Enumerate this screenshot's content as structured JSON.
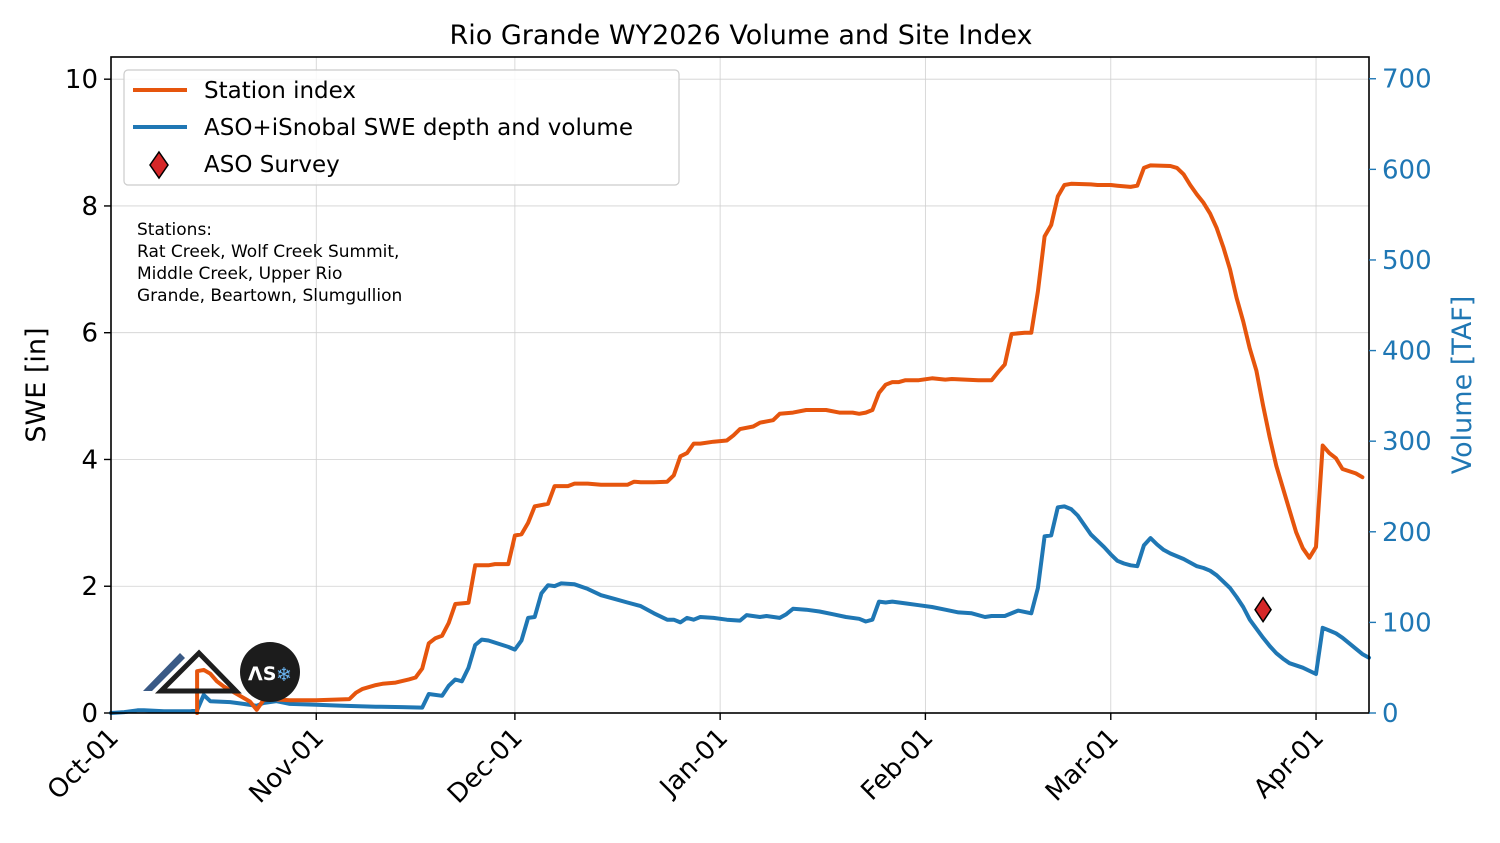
{
  "chart_data": {
    "type": "line",
    "title": "Rio Grande WY2026 Volume and Site Index",
    "ylabel": "SWE [in]",
    "y2label": "Volume [TAF]",
    "ylim": [
      0,
      10.35
    ],
    "y2lim": [
      0,
      724
    ],
    "yticks": [
      "0",
      "2",
      "4",
      "6",
      "8",
      "10"
    ],
    "y2ticks": [
      "0",
      "100",
      "200",
      "300",
      "400",
      "500",
      "600",
      "700"
    ],
    "xticks": [
      {
        "date": "2025-10-01",
        "label": "Oct-01"
      },
      {
        "date": "2025-11-01",
        "label": "Nov-01"
      },
      {
        "date": "2025-12-01",
        "label": "Dec-01"
      },
      {
        "date": "2026-01-01",
        "label": "Jan-01"
      },
      {
        "date": "2026-02-01",
        "label": "Feb-01"
      },
      {
        "date": "2026-03-01",
        "label": "Mar-01"
      },
      {
        "date": "2026-04-01",
        "label": "Apr-01"
      }
    ],
    "xlim": [
      "2025-10-01",
      "2026-04-09"
    ],
    "grid": true,
    "legend_position": "top-left",
    "legend": [
      "Station index",
      "ASO+iSnobal SWE depth and volume",
      "ASO Survey"
    ],
    "annotation": [
      "Stations:",
      "Rat Creek, Wolf Creek Summit,",
      "Middle Creek, Upper Rio",
      "Grande, Beartown, Slumgullion"
    ],
    "colors": {
      "station": "#e6550d",
      "volume": "#1f77b4",
      "survey": "#d62728"
    },
    "series": [
      {
        "name": "Station index",
        "axis": "left",
        "points": [
          [
            "2025-10-14",
            0.0
          ],
          [
            "2025-10-14",
            0.66
          ],
          [
            "2025-10-15",
            0.68
          ],
          [
            "2025-10-16",
            0.62
          ],
          [
            "2025-10-17",
            0.5
          ],
          [
            "2025-10-18",
            0.42
          ],
          [
            "2025-10-20",
            0.3
          ],
          [
            "2025-10-22",
            0.18
          ],
          [
            "2025-10-23",
            0.05
          ],
          [
            "2025-10-24",
            0.2
          ],
          [
            "2025-10-25",
            0.22
          ],
          [
            "2025-10-28",
            0.2
          ],
          [
            "2025-11-01",
            0.2
          ],
          [
            "2025-11-06",
            0.22
          ],
          [
            "2025-11-07",
            0.32
          ],
          [
            "2025-11-08",
            0.38
          ],
          [
            "2025-11-10",
            0.44
          ],
          [
            "2025-11-11",
            0.46
          ],
          [
            "2025-11-13",
            0.48
          ],
          [
            "2025-11-15",
            0.53
          ],
          [
            "2025-11-16",
            0.56
          ],
          [
            "2025-11-17",
            0.7
          ],
          [
            "2025-11-18",
            1.1
          ],
          [
            "2025-11-19",
            1.18
          ],
          [
            "2025-11-20",
            1.22
          ],
          [
            "2025-11-21",
            1.42
          ],
          [
            "2025-11-22",
            1.72
          ],
          [
            "2025-11-24",
            1.74
          ],
          [
            "2025-11-25",
            2.33
          ],
          [
            "2025-11-27",
            2.33
          ],
          [
            "2025-11-28",
            2.35
          ],
          [
            "2025-11-30",
            2.35
          ],
          [
            "2025-12-01",
            2.8
          ],
          [
            "2025-12-02",
            2.82
          ],
          [
            "2025-12-03",
            3.0
          ],
          [
            "2025-12-04",
            3.26
          ],
          [
            "2025-12-06",
            3.3
          ],
          [
            "2025-12-07",
            3.58
          ],
          [
            "2025-12-09",
            3.58
          ],
          [
            "2025-12-10",
            3.62
          ],
          [
            "2025-12-12",
            3.62
          ],
          [
            "2025-12-14",
            3.6
          ],
          [
            "2025-12-16",
            3.6
          ],
          [
            "2025-12-18",
            3.6
          ],
          [
            "2025-12-19",
            3.65
          ],
          [
            "2025-12-20",
            3.64
          ],
          [
            "2025-12-22",
            3.64
          ],
          [
            "2025-12-24",
            3.65
          ],
          [
            "2025-12-25",
            3.75
          ],
          [
            "2025-12-26",
            4.05
          ],
          [
            "2025-12-27",
            4.1
          ],
          [
            "2025-12-28",
            4.25
          ],
          [
            "2025-12-29",
            4.25
          ],
          [
            "2025-12-31",
            4.28
          ],
          [
            "2026-01-02",
            4.3
          ],
          [
            "2026-01-03",
            4.38
          ],
          [
            "2026-01-04",
            4.48
          ],
          [
            "2026-01-06",
            4.52
          ],
          [
            "2026-01-07",
            4.58
          ],
          [
            "2026-01-08",
            4.6
          ],
          [
            "2026-01-09",
            4.62
          ],
          [
            "2026-01-10",
            4.72
          ],
          [
            "2026-01-12",
            4.74
          ],
          [
            "2026-01-14",
            4.78
          ],
          [
            "2026-01-17",
            4.78
          ],
          [
            "2026-01-19",
            4.74
          ],
          [
            "2026-01-21",
            4.74
          ],
          [
            "2026-01-22",
            4.72
          ],
          [
            "2026-01-23",
            4.74
          ],
          [
            "2026-01-24",
            4.78
          ],
          [
            "2026-01-25",
            5.05
          ],
          [
            "2026-01-26",
            5.18
          ],
          [
            "2026-01-27",
            5.22
          ],
          [
            "2026-01-28",
            5.22
          ],
          [
            "2026-01-29",
            5.25
          ],
          [
            "2026-01-31",
            5.25
          ],
          [
            "2026-02-02",
            5.28
          ],
          [
            "2026-02-04",
            5.26
          ],
          [
            "2026-02-05",
            5.27
          ],
          [
            "2026-02-07",
            5.26
          ],
          [
            "2026-02-09",
            5.25
          ],
          [
            "2026-02-11",
            5.25
          ],
          [
            "2026-02-12",
            5.38
          ],
          [
            "2026-02-13",
            5.5
          ],
          [
            "2026-02-14",
            5.98
          ],
          [
            "2026-02-16",
            6.0
          ],
          [
            "2026-02-17",
            6.0
          ],
          [
            "2026-02-18",
            6.65
          ],
          [
            "2026-02-19",
            7.52
          ],
          [
            "2026-02-20",
            7.7
          ],
          [
            "2026-02-21",
            8.15
          ],
          [
            "2026-02-22",
            8.33
          ],
          [
            "2026-02-23",
            8.35
          ],
          [
            "2026-02-26",
            8.34
          ],
          [
            "2026-02-27",
            8.33
          ],
          [
            "2026-03-01",
            8.33
          ],
          [
            "2026-03-02",
            8.32
          ],
          [
            "2026-03-04",
            8.3
          ],
          [
            "2026-03-05",
            8.32
          ],
          [
            "2026-03-06",
            8.6
          ],
          [
            "2026-03-07",
            8.64
          ],
          [
            "2026-03-10",
            8.63
          ],
          [
            "2026-03-11",
            8.6
          ],
          [
            "2026-03-12",
            8.5
          ],
          [
            "2026-03-13",
            8.33
          ],
          [
            "2026-03-14",
            8.18
          ],
          [
            "2026-03-15",
            8.05
          ],
          [
            "2026-03-16",
            7.88
          ],
          [
            "2026-03-17",
            7.65
          ],
          [
            "2026-03-18",
            7.35
          ],
          [
            "2026-03-19",
            7.0
          ],
          [
            "2026-03-20",
            6.55
          ],
          [
            "2026-03-21",
            6.18
          ],
          [
            "2026-03-22",
            5.75
          ],
          [
            "2026-03-23",
            5.4
          ],
          [
            "2026-03-24",
            4.85
          ],
          [
            "2026-03-25",
            4.35
          ],
          [
            "2026-03-26",
            3.9
          ],
          [
            "2026-03-27",
            3.55
          ],
          [
            "2026-03-28",
            3.2
          ],
          [
            "2026-03-29",
            2.85
          ],
          [
            "2026-03-30",
            2.6
          ],
          [
            "2026-03-31",
            2.45
          ],
          [
            "2026-04-01",
            2.62
          ],
          [
            "2026-04-02",
            4.22
          ],
          [
            "2026-04-03",
            4.1
          ],
          [
            "2026-04-04",
            4.02
          ],
          [
            "2026-04-05",
            3.85
          ],
          [
            "2026-04-07",
            3.78
          ],
          [
            "2026-04-08",
            3.72
          ]
        ]
      },
      {
        "name": "ASO+iSnobal SWE depth and volume",
        "axis": "right",
        "points": [
          [
            "2025-10-01",
            0
          ],
          [
            "2025-10-03",
            1
          ],
          [
            "2025-10-04",
            2
          ],
          [
            "2025-10-05",
            3
          ],
          [
            "2025-10-06",
            3
          ],
          [
            "2025-10-09",
            2
          ],
          [
            "2025-10-11",
            2
          ],
          [
            "2025-10-13",
            2
          ],
          [
            "2025-10-14",
            3
          ],
          [
            "2025-10-15",
            20
          ],
          [
            "2025-10-16",
            13
          ],
          [
            "2025-10-19",
            12
          ],
          [
            "2025-10-21",
            10
          ],
          [
            "2025-10-23",
            8
          ],
          [
            "2025-10-24",
            11
          ],
          [
            "2025-10-26",
            13
          ],
          [
            "2025-10-28",
            10
          ],
          [
            "2025-11-01",
            9
          ],
          [
            "2025-11-05",
            8
          ],
          [
            "2025-11-10",
            7
          ],
          [
            "2025-11-14",
            6.5
          ],
          [
            "2025-11-17",
            6
          ],
          [
            "2025-11-18",
            21
          ],
          [
            "2025-11-20",
            19
          ],
          [
            "2025-11-21",
            30
          ],
          [
            "2025-11-22",
            37
          ],
          [
            "2025-11-23",
            35
          ],
          [
            "2025-11-24",
            50
          ],
          [
            "2025-11-25",
            75
          ],
          [
            "2025-11-26",
            81
          ],
          [
            "2025-11-27",
            80
          ],
          [
            "2025-11-30",
            73
          ],
          [
            "2025-12-01",
            70
          ],
          [
            "2025-12-02",
            80
          ],
          [
            "2025-12-03",
            105
          ],
          [
            "2025-12-04",
            106
          ],
          [
            "2025-12-05",
            132
          ],
          [
            "2025-12-06",
            141
          ],
          [
            "2025-12-07",
            140
          ],
          [
            "2025-12-08",
            143
          ],
          [
            "2025-12-10",
            142
          ],
          [
            "2025-12-12",
            137
          ],
          [
            "2025-12-14",
            130
          ],
          [
            "2025-12-16",
            126
          ],
          [
            "2025-12-18",
            122
          ],
          [
            "2025-12-20",
            118
          ],
          [
            "2025-12-22",
            110
          ],
          [
            "2025-12-24",
            103
          ],
          [
            "2025-12-25",
            103
          ],
          [
            "2025-12-26",
            100
          ],
          [
            "2025-12-27",
            105
          ],
          [
            "2025-12-28",
            103
          ],
          [
            "2025-12-29",
            106
          ],
          [
            "2025-12-31",
            105
          ],
          [
            "2026-01-02",
            103
          ],
          [
            "2026-01-04",
            102
          ],
          [
            "2026-01-05",
            108
          ],
          [
            "2026-01-07",
            106
          ],
          [
            "2026-01-08",
            107
          ],
          [
            "2026-01-10",
            105
          ],
          [
            "2026-01-11",
            109
          ],
          [
            "2026-01-12",
            115
          ],
          [
            "2026-01-14",
            114
          ],
          [
            "2026-01-16",
            112
          ],
          [
            "2026-01-18",
            109
          ],
          [
            "2026-01-20",
            106
          ],
          [
            "2026-01-22",
            104
          ],
          [
            "2026-01-23",
            101
          ],
          [
            "2026-01-24",
            103
          ],
          [
            "2026-01-25",
            123
          ],
          [
            "2026-01-26",
            122
          ],
          [
            "2026-01-27",
            123
          ],
          [
            "2026-01-29",
            121
          ],
          [
            "2026-01-31",
            119
          ],
          [
            "2026-02-02",
            117
          ],
          [
            "2026-02-04",
            114
          ],
          [
            "2026-02-06",
            111
          ],
          [
            "2026-02-08",
            110
          ],
          [
            "2026-02-10",
            106
          ],
          [
            "2026-02-11",
            107
          ],
          [
            "2026-02-13",
            107
          ],
          [
            "2026-02-15",
            113
          ],
          [
            "2026-02-17",
            110
          ],
          [
            "2026-02-18",
            138
          ],
          [
            "2026-02-19",
            195
          ],
          [
            "2026-02-20",
            196
          ],
          [
            "2026-02-21",
            227
          ],
          [
            "2026-02-22",
            228
          ],
          [
            "2026-02-23",
            225
          ],
          [
            "2026-02-24",
            218
          ],
          [
            "2026-02-26",
            197
          ],
          [
            "2026-02-28",
            183
          ],
          [
            "2026-03-01",
            175
          ],
          [
            "2026-03-02",
            168
          ],
          [
            "2026-03-03",
            165
          ],
          [
            "2026-03-04",
            163
          ],
          [
            "2026-03-05",
            162
          ],
          [
            "2026-03-06",
            185
          ],
          [
            "2026-03-07",
            193
          ],
          [
            "2026-03-08",
            186
          ],
          [
            "2026-03-09",
            180
          ],
          [
            "2026-03-10",
            176
          ],
          [
            "2026-03-12",
            170
          ],
          [
            "2026-03-14",
            162
          ],
          [
            "2026-03-15",
            160
          ],
          [
            "2026-03-16",
            157
          ],
          [
            "2026-03-17",
            152
          ],
          [
            "2026-03-18",
            145
          ],
          [
            "2026-03-19",
            138
          ],
          [
            "2026-03-20",
            128
          ],
          [
            "2026-03-21",
            117
          ],
          [
            "2026-03-22",
            103
          ],
          [
            "2026-03-23",
            93
          ],
          [
            "2026-03-24",
            83
          ],
          [
            "2026-03-25",
            74
          ],
          [
            "2026-03-26",
            66
          ],
          [
            "2026-03-27",
            60
          ],
          [
            "2026-03-28",
            55
          ],
          [
            "2026-03-30",
            50
          ],
          [
            "2026-04-01",
            43
          ],
          [
            "2026-04-02",
            94
          ],
          [
            "2026-04-03",
            91
          ],
          [
            "2026-04-04",
            88
          ],
          [
            "2026-04-05",
            83
          ],
          [
            "2026-04-06",
            77
          ],
          [
            "2026-04-07",
            71
          ],
          [
            "2026-04-08",
            65
          ],
          [
            "2026-04-09",
            61
          ]
        ]
      }
    ],
    "survey": {
      "name": "ASO Survey",
      "axis": "right",
      "date": "2026-03-24",
      "value": 114
    }
  }
}
